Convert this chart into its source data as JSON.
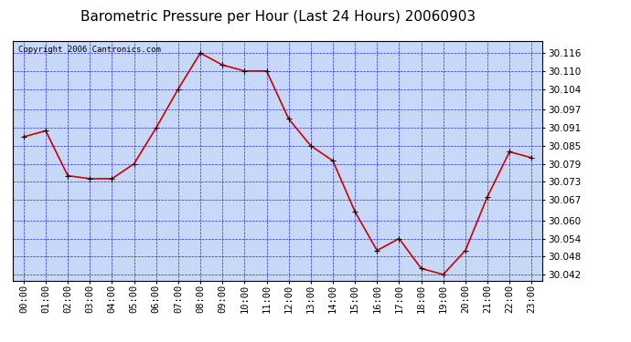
{
  "title": "Barometric Pressure per Hour (Last 24 Hours) 20060903",
  "copyright": "Copyright 2006 Cantronics.com",
  "hours": [
    "00:00",
    "01:00",
    "02:00",
    "03:00",
    "04:00",
    "05:00",
    "06:00",
    "07:00",
    "08:00",
    "09:00",
    "10:00",
    "11:00",
    "12:00",
    "13:00",
    "14:00",
    "15:00",
    "16:00",
    "17:00",
    "18:00",
    "19:00",
    "20:00",
    "21:00",
    "22:00",
    "23:00"
  ],
  "values": [
    30.088,
    30.09,
    30.075,
    30.074,
    30.074,
    30.079,
    30.091,
    30.104,
    30.116,
    30.112,
    30.11,
    30.11,
    30.094,
    30.085,
    30.08,
    30.063,
    30.05,
    30.054,
    30.044,
    30.042,
    30.05,
    30.068,
    30.083,
    30.081
  ],
  "ylim_min": 30.04,
  "ylim_max": 30.12,
  "yticks": [
    30.042,
    30.048,
    30.054,
    30.06,
    30.067,
    30.073,
    30.079,
    30.085,
    30.091,
    30.097,
    30.104,
    30.11,
    30.116
  ],
  "line_color": "#cc0000",
  "marker_color": "#000000",
  "bg_color": "#ffffff",
  "plot_bg_color": "#c8d8f8",
  "grid_color": "#0000cc",
  "title_color": "#000000",
  "title_fontsize": 11,
  "copyright_fontsize": 6.5,
  "tick_fontsize": 7.5,
  "ylabel_color": "#000000"
}
